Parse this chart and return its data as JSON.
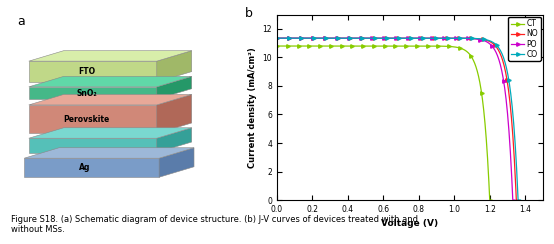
{
  "panel_a_label": "a",
  "panel_b_label": "b",
  "layers": [
    {
      "name": "Ag",
      "color_top": "#9db8d8",
      "color_face": "#7a9cc8",
      "color_side": "#5a7caa"
    },
    {
      "name": "",
      "color_top": "#7ad8d0",
      "color_face": "#55c0b8",
      "color_side": "#35a098"
    },
    {
      "name": "Perovskite",
      "color_top": "#e8a898",
      "color_face": "#d08878",
      "color_side": "#b06858"
    },
    {
      "name": "SnO₂",
      "color_top": "#60d8a8",
      "color_face": "#45b888",
      "color_side": "#259868"
    },
    {
      "name": "FTO",
      "color_top": "#d8eeaa",
      "color_face": "#c0d888",
      "color_side": "#a0b868"
    }
  ],
  "jv_curves": {
    "CT": {
      "color": "#88cc00",
      "jsc": 10.8,
      "voc": 1.2,
      "n_ideality": 1.5
    },
    "NO": {
      "color": "#ff2020",
      "jsc": 11.35,
      "voc": 1.35,
      "n_ideality": 1.5
    },
    "PO": {
      "color": "#cc00cc",
      "jsc": 11.35,
      "voc": 1.33,
      "n_ideality": 1.5
    },
    "CO": {
      "color": "#00aabb",
      "jsc": 11.35,
      "voc": 1.36,
      "n_ideality": 1.5
    }
  },
  "xlabel": "Voltage (V)",
  "ylabel": "Current density (mA/cm²)",
  "xlim": [
    0.0,
    1.5
  ],
  "ylim": [
    0,
    13
  ],
  "xticks": [
    0.0,
    0.2,
    0.4,
    0.6,
    0.8,
    1.0,
    1.2,
    1.4
  ],
  "yticks": [
    0,
    2,
    4,
    6,
    8,
    10,
    12
  ],
  "caption": "Figure S18. (a) Schematic diagram of device structure. (b) J-V curves of devices treated with and\nwithout MSs."
}
